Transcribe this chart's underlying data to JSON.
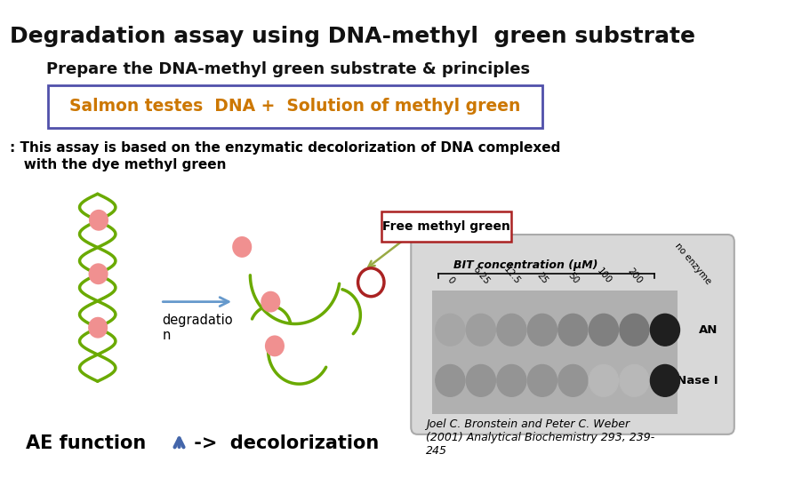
{
  "title": "Degradation assay using DNA-methyl  green substrate",
  "subtitle": "Prepare the DNA-methyl green substrate & principles",
  "box_text": "Salmon testes  DNA +  Solution of methyl green",
  "description_line1": ": This assay is based on the enzymatic decolorization of DNA complexed",
  "description_line2": "   with the dye methyl green",
  "degradation_label": "degradatio\nn",
  "arrow_label": "Free methyl green",
  "bottom_left": "AE function",
  "bottom_right": " ->  decolorization",
  "reference": "Joel C. Bronstein and Peter C. Weber\n(2001) Analytical Biochemistry 293, 239-\n245",
  "bg_color": "#ffffff",
  "title_color": "#111111",
  "subtitle_color": "#111111",
  "box_border_color": "#5050aa",
  "box_text_color": "#cc7700",
  "dna_color": "#6aaa00",
  "ball_fill": "#f09090",
  "free_ball_border": "#aa2222",
  "deg_arrow_color": "#6699cc",
  "free_arrow_color": "#99aa44",
  "label_box_color": "#aa2222",
  "up_arrow_color": "#4466aa"
}
